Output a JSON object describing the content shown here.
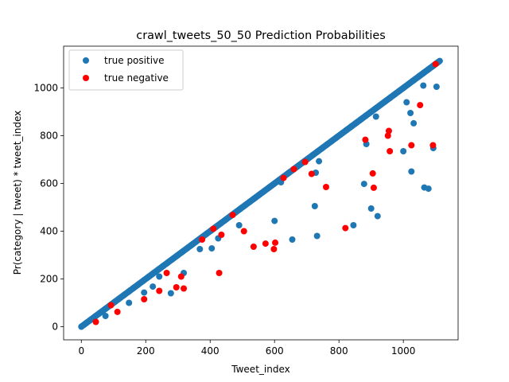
{
  "chart_data": {
    "type": "scatter",
    "title": "crawl_tweets_50_50 Prediction Probabilities",
    "xlabel": "Tweet_index",
    "ylabel": "Pr(category | tweet) * tweet_index",
    "xlim": [
      -55,
      1170
    ],
    "ylim": [
      -55,
      1175
    ],
    "xticks": [
      0,
      200,
      400,
      600,
      800,
      1000
    ],
    "yticks": [
      0,
      200,
      400,
      600,
      800,
      1000
    ],
    "grid": false,
    "legend_position": "upper-left",
    "diagonal": {
      "series": "true positive",
      "from": 0,
      "to": 1115,
      "step": 3
    },
    "series": [
      {
        "name": "true positive",
        "color": "#1f77b4",
        "points": [
          [
            75,
            45
          ],
          [
            148,
            100
          ],
          [
            195,
            143
          ],
          [
            222,
            168
          ],
          [
            242,
            210
          ],
          [
            278,
            140
          ],
          [
            318,
            225
          ],
          [
            368,
            325
          ],
          [
            405,
            328
          ],
          [
            425,
            370
          ],
          [
            490,
            425
          ],
          [
            600,
            443
          ],
          [
            620,
            605
          ],
          [
            655,
            365
          ],
          [
            725,
            505
          ],
          [
            728,
            645
          ],
          [
            732,
            380
          ],
          [
            738,
            693
          ],
          [
            845,
            425
          ],
          [
            878,
            598
          ],
          [
            885,
            765
          ],
          [
            900,
            495
          ],
          [
            915,
            880
          ],
          [
            920,
            463
          ],
          [
            1000,
            735
          ],
          [
            1010,
            940
          ],
          [
            1022,
            895
          ],
          [
            1025,
            650
          ],
          [
            1032,
            852
          ],
          [
            1062,
            1010
          ],
          [
            1065,
            583
          ],
          [
            1078,
            578
          ],
          [
            1093,
            748
          ],
          [
            1103,
            1005
          ]
        ]
      },
      {
        "name": "true negative",
        "color": "#ff0000",
        "points": [
          [
            45,
            20
          ],
          [
            92,
            90
          ],
          [
            112,
            62
          ],
          [
            195,
            115
          ],
          [
            242,
            150
          ],
          [
            265,
            225
          ],
          [
            295,
            165
          ],
          [
            310,
            210
          ],
          [
            318,
            160
          ],
          [
            375,
            365
          ],
          [
            410,
            410
          ],
          [
            428,
            225
          ],
          [
            435,
            385
          ],
          [
            470,
            468
          ],
          [
            505,
            400
          ],
          [
            535,
            335
          ],
          [
            572,
            348
          ],
          [
            598,
            325
          ],
          [
            602,
            352
          ],
          [
            628,
            623
          ],
          [
            660,
            660
          ],
          [
            695,
            690
          ],
          [
            715,
            640
          ],
          [
            760,
            585
          ],
          [
            820,
            413
          ],
          [
            882,
            783
          ],
          [
            905,
            642
          ],
          [
            908,
            582
          ],
          [
            952,
            800
          ],
          [
            955,
            820
          ],
          [
            958,
            735
          ],
          [
            1025,
            760
          ],
          [
            1052,
            928
          ],
          [
            1092,
            760
          ],
          [
            1100,
            1100
          ]
        ]
      }
    ]
  }
}
